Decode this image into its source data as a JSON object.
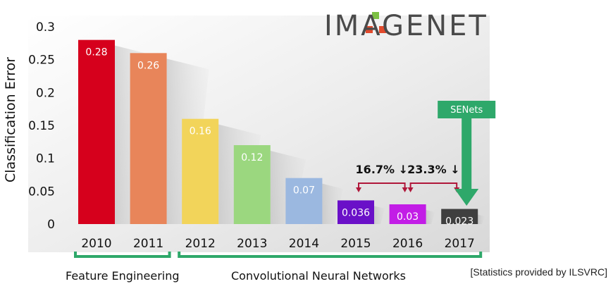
{
  "logo": {
    "text": "IMAGENET"
  },
  "chart_data": {
    "type": "bar",
    "title": "",
    "xlabel": "",
    "ylabel": "Classification Error",
    "ylim": [
      0,
      0.3
    ],
    "yticks": [
      "0",
      "0.05",
      "0.1",
      "0.15",
      "0.2",
      "0.25",
      "0.3"
    ],
    "categories": [
      "2010",
      "2011",
      "2012",
      "2013",
      "2014",
      "2015",
      "2016",
      "2017"
    ],
    "values": [
      0.28,
      0.26,
      0.16,
      0.12,
      0.07,
      0.036,
      0.03,
      0.023
    ],
    "value_labels": [
      "0.28",
      "0.26",
      "0.16",
      "0.12",
      "0.07",
      "0.036",
      "0.03",
      "0.023"
    ],
    "colors": [
      "#d6001c",
      "#e8855a",
      "#f2d45a",
      "#9bd77f",
      "#9bb8e0",
      "#6a10c8",
      "#c21de6",
      "#3f3f3f"
    ],
    "annotations": [
      {
        "text": "16.7% ↓",
        "from": "2015",
        "to": "2016"
      },
      {
        "text": "23.3% ↓",
        "from": "2016",
        "to": "2017"
      },
      {
        "text": "SENets",
        "target": "2017"
      }
    ],
    "groups": [
      {
        "label": "Feature Engineering",
        "from": "2010",
        "to": "2011"
      },
      {
        "label": "Convolutional Neural Networks",
        "from": "2012",
        "to": "2017"
      }
    ],
    "source_note": "[Statistics provided by ILSVRC]"
  }
}
